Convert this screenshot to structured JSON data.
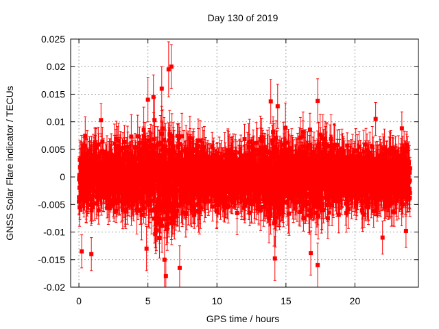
{
  "chart_data": {
    "type": "scatter",
    "title": "Day 130 of 2019",
    "xlabel": "GPS time / hours",
    "ylabel": "GNSS Solar Flare indicator / TECUs",
    "xlim": [
      -0.6,
      24.6
    ],
    "ylim": [
      -0.02,
      0.025
    ],
    "grid": true,
    "x_ticks": [
      0,
      5,
      10,
      15,
      20
    ],
    "x_tick_labels": [
      "0",
      "5",
      "10",
      "15",
      "20"
    ],
    "y_ticks": [
      -0.02,
      -0.015,
      -0.01,
      -0.005,
      0,
      0.005,
      0.01,
      0.015,
      0.02,
      0.025
    ],
    "y_tick_labels": [
      "-0.02",
      "-0.015",
      "-0.01",
      "-0.005",
      "0",
      "0.005",
      "0.01",
      "0.015",
      "0.02",
      "0.025"
    ],
    "series": [
      {
        "name": "GNSS Solar Flare indicator",
        "color": "#ff0000",
        "marker": "square",
        "error_bars": true,
        "x_range": [
          0,
          24
        ],
        "sample_interval_hours": 0.0083,
        "typical_half_spread": 0.0045,
        "typical_error": 0.003,
        "envelope": [
          {
            "x": 0,
            "amp": 1.0
          },
          {
            "x": 3,
            "amp": 1.0
          },
          {
            "x": 4.5,
            "amp": 1.35
          },
          {
            "x": 6.5,
            "amp": 1.9
          },
          {
            "x": 8,
            "amp": 1.3
          },
          {
            "x": 9.5,
            "amp": 0.95
          },
          {
            "x": 12,
            "amp": 1.0
          },
          {
            "x": 13.5,
            "amp": 1.3
          },
          {
            "x": 14.3,
            "amp": 1.6
          },
          {
            "x": 15.5,
            "amp": 1.1
          },
          {
            "x": 17.3,
            "amp": 1.45
          },
          {
            "x": 19,
            "amp": 1.0
          },
          {
            "x": 24,
            "amp": 1.0
          }
        ],
        "extreme_points": [
          {
            "x": 6.5,
            "y": 0.0195,
            "err": 0.005
          },
          {
            "x": 6.7,
            "y": 0.02,
            "err": 0.004
          },
          {
            "x": 6.0,
            "y": 0.016,
            "err": 0.004
          },
          {
            "x": 5.0,
            "y": 0.014,
            "err": 0.004
          },
          {
            "x": 5.4,
            "y": 0.0145,
            "err": 0.004
          },
          {
            "x": 6.3,
            "y": -0.018,
            "err": 0.003
          },
          {
            "x": 7.3,
            "y": -0.0165,
            "err": 0.004
          },
          {
            "x": 6.2,
            "y": -0.015,
            "err": 0.005
          },
          {
            "x": 4.9,
            "y": -0.013,
            "err": 0.004
          },
          {
            "x": 13.9,
            "y": 0.0137,
            "err": 0.004
          },
          {
            "x": 14.4,
            "y": 0.0128,
            "err": 0.004
          },
          {
            "x": 14.2,
            "y": -0.0148,
            "err": 0.004
          },
          {
            "x": 17.3,
            "y": 0.0138,
            "err": 0.004
          },
          {
            "x": 17.3,
            "y": -0.016,
            "err": 0.004
          },
          {
            "x": 16.8,
            "y": -0.0138,
            "err": 0.004
          },
          {
            "x": 0.9,
            "y": -0.014,
            "err": 0.003
          },
          {
            "x": 0.2,
            "y": -0.0135,
            "err": 0.003
          },
          {
            "x": 1.6,
            "y": 0.0103,
            "err": 0.003
          },
          {
            "x": 21.5,
            "y": 0.0105,
            "err": 0.003
          },
          {
            "x": 22.0,
            "y": -0.011,
            "err": 0.003
          },
          {
            "x": 23.7,
            "y": -0.0098,
            "err": 0.003
          },
          {
            "x": 23.4,
            "y": 0.0088,
            "err": 0.003
          }
        ]
      }
    ]
  }
}
